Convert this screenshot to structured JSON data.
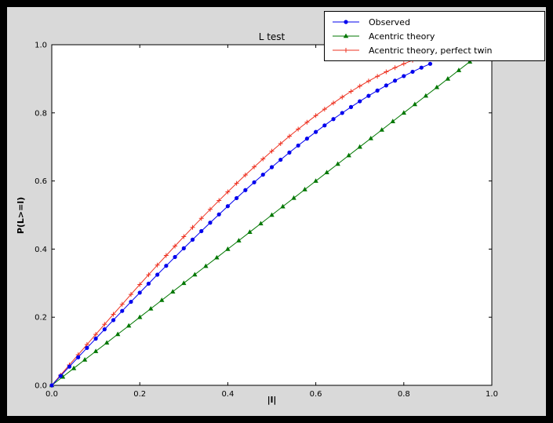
{
  "figure": {
    "outer_bg": "#000000",
    "bg": "#d9d9d9",
    "axes_bg": "#ffffff",
    "frame_color": "#000000"
  },
  "chart_data": {
    "type": "line",
    "title": "L test",
    "xlabel": "|l|",
    "ylabel": "P(L>=l)",
    "xlim": [
      0.0,
      1.0
    ],
    "ylim": [
      0.0,
      1.0
    ],
    "grid": false,
    "legend_position": "upper right",
    "xticks": {
      "values": [
        0.0,
        0.2,
        0.4,
        0.6,
        0.8,
        1.0
      ],
      "labels": [
        "0.0",
        "0.2",
        "0.4",
        "0.6",
        "0.8",
        "1.0"
      ]
    },
    "yticks": {
      "values": [
        0.0,
        0.2,
        0.4,
        0.6,
        0.8,
        1.0
      ],
      "labels": [
        "0.0",
        "0.2",
        "0.4",
        "0.6",
        "0.8",
        "1.0"
      ]
    },
    "series": [
      {
        "id": "observed",
        "name": "Observed",
        "color": "#0000ee",
        "marker": "circle",
        "x": [
          0,
          0.02,
          0.04,
          0.06,
          0.08,
          0.1,
          0.12,
          0.14,
          0.16,
          0.18,
          0.2,
          0.22,
          0.24,
          0.26,
          0.28,
          0.3,
          0.32,
          0.34,
          0.36,
          0.38,
          0.4,
          0.42,
          0.44,
          0.46,
          0.48,
          0.5,
          0.52,
          0.54,
          0.56,
          0.58,
          0.6,
          0.62,
          0.64,
          0.66,
          0.68,
          0.7,
          0.72,
          0.74,
          0.76,
          0.78,
          0.8,
          0.82,
          0.84,
          0.86
        ],
        "y": [
          0,
          0.0275,
          0.055,
          0.0824,
          0.1098,
          0.1371,
          0.1644,
          0.1915,
          0.2185,
          0.2453,
          0.272,
          0.2985,
          0.3248,
          0.3509,
          0.3768,
          0.4024,
          0.4277,
          0.4528,
          0.4775,
          0.5019,
          0.526,
          0.5497,
          0.5731,
          0.596,
          0.6185,
          0.6406,
          0.6623,
          0.6835,
          0.7041,
          0.7243,
          0.744,
          0.7631,
          0.7817,
          0.7997,
          0.8171,
          0.8339,
          0.85,
          0.8655,
          0.8804,
          0.8945,
          0.908,
          0.9207,
          0.9327,
          0.944
        ]
      },
      {
        "id": "acentric-theory",
        "name": "Acentric theory",
        "color": "#007700",
        "marker": "triangle",
        "x": [
          0,
          0.025,
          0.05,
          0.075,
          0.1,
          0.125,
          0.15,
          0.175,
          0.2,
          0.225,
          0.25,
          0.275,
          0.3,
          0.325,
          0.35,
          0.375,
          0.4,
          0.425,
          0.45,
          0.475,
          0.5,
          0.525,
          0.55,
          0.575,
          0.6,
          0.625,
          0.65,
          0.675,
          0.7,
          0.725,
          0.75,
          0.775,
          0.8,
          0.825,
          0.85,
          0.875,
          0.9,
          0.925,
          0.95,
          0.975
        ],
        "y": [
          0,
          0.025,
          0.05,
          0.075,
          0.1,
          0.125,
          0.15,
          0.175,
          0.2,
          0.225,
          0.25,
          0.275,
          0.3,
          0.325,
          0.35,
          0.375,
          0.4,
          0.425,
          0.45,
          0.475,
          0.5,
          0.525,
          0.55,
          0.575,
          0.6,
          0.625,
          0.65,
          0.675,
          0.7,
          0.725,
          0.75,
          0.775,
          0.8,
          0.825,
          0.85,
          0.875,
          0.9,
          0.925,
          0.95,
          0.975
        ]
      },
      {
        "id": "acentric-theory-perfect-twin",
        "name": "Acentric theory, perfect twin",
        "color": "#ee3322",
        "marker": "plus",
        "x": [
          0,
          0.02,
          0.04,
          0.06,
          0.08,
          0.1,
          0.12,
          0.14,
          0.16,
          0.18,
          0.2,
          0.22,
          0.24,
          0.26,
          0.28,
          0.3,
          0.32,
          0.34,
          0.36,
          0.38,
          0.4,
          0.42,
          0.44,
          0.46,
          0.48,
          0.5,
          0.52,
          0.54,
          0.56,
          0.58,
          0.6,
          0.62,
          0.64,
          0.66,
          0.68,
          0.7,
          0.72,
          0.74,
          0.76,
          0.78,
          0.8,
          0.82,
          0.84,
          0.86,
          0.88
        ],
        "y": [
          0,
          0.03,
          0.06,
          0.0899,
          0.1197,
          0.1495,
          0.1791,
          0.2086,
          0.2379,
          0.2671,
          0.296,
          0.3247,
          0.3531,
          0.3812,
          0.409,
          0.4365,
          0.4636,
          0.4903,
          0.5167,
          0.5426,
          0.568,
          0.593,
          0.6174,
          0.6413,
          0.6647,
          0.6875,
          0.7097,
          0.7313,
          0.7522,
          0.7724,
          0.792,
          0.8108,
          0.8289,
          0.8463,
          0.8628,
          0.8785,
          0.8934,
          0.9074,
          0.9205,
          0.9327,
          0.944,
          0.9543,
          0.9637,
          0.972,
          0.9793
        ]
      }
    ]
  }
}
